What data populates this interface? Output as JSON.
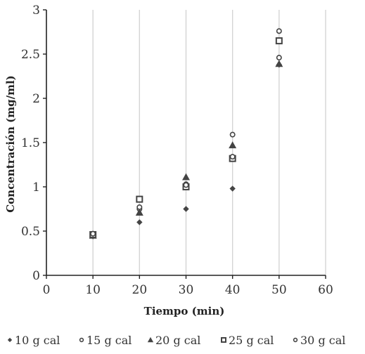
{
  "chart_data": {
    "type": "scatter",
    "xlabel": "Tiempo (min)",
    "ylabel": "Concentración (mg/ml)",
    "xlim": [
      0,
      60
    ],
    "ylim": [
      0,
      3
    ],
    "x_ticks": [
      "0",
      "10",
      "20",
      "30",
      "40",
      "50",
      "60"
    ],
    "y_ticks": [
      "0",
      "0.5",
      "1",
      "1.5",
      "2",
      "2.5",
      "3"
    ],
    "grid": "vertical",
    "legend_position": "bottom",
    "series": [
      {
        "name": "10 g cal",
        "marker": "diamond",
        "color": "#444444",
        "x": [
          10,
          20,
          30,
          40,
          50
        ],
        "y": [
          0.44,
          0.6,
          0.75,
          0.98,
          2.38
        ]
      },
      {
        "name": "15 g cal",
        "marker": "circle",
        "color": "#444444",
        "x": [
          10,
          20,
          30,
          40,
          50
        ],
        "y": [
          0.47,
          0.75,
          1.03,
          1.59,
          2.46
        ]
      },
      {
        "name": "20 g cal",
        "marker": "triangle",
        "color": "#444444",
        "x": [
          10,
          20,
          30,
          40,
          50
        ],
        "y": [
          0.45,
          0.71,
          1.11,
          1.47,
          2.39
        ]
      },
      {
        "name": "25 g cal",
        "marker": "square",
        "color": "#444444",
        "x": [
          10,
          20,
          30,
          40,
          50
        ],
        "y": [
          0.46,
          0.86,
          1.0,
          1.32,
          2.65
        ]
      },
      {
        "name": "30 g cal",
        "marker": "circle",
        "color": "#444444",
        "x": [
          10,
          20,
          30,
          40,
          50
        ],
        "y": [
          0.47,
          0.77,
          1.02,
          1.34,
          2.76
        ]
      }
    ]
  }
}
